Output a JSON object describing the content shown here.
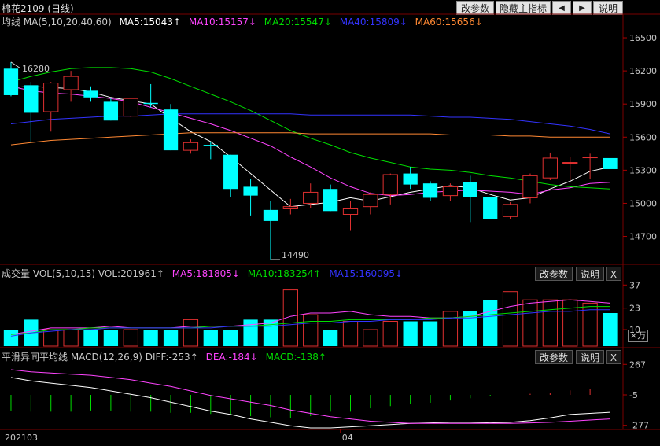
{
  "header": {
    "title": "棉花2109 (日线)",
    "buttons": {
      "params": "改参数",
      "hide_main": "隐藏主指标",
      "prev": "◀",
      "next": "▶",
      "help": "说明"
    }
  },
  "main_legend": {
    "label": "均线 MA(5,10,20,40,60)",
    "items": [
      {
        "text": "MA5:15043↑",
        "color": "#ffffff"
      },
      {
        "text": "MA10:15157↓",
        "color": "#ff44ff"
      },
      {
        "text": "MA20:15547↓",
        "color": "#00dd00"
      },
      {
        "text": "MA40:15809↓",
        "color": "#3333ff"
      },
      {
        "text": "MA60:15656↓",
        "color": "#ff8833"
      }
    ]
  },
  "vol_legend": {
    "label": "成交量 VOL(5,10,15) VOL:201961↑",
    "items": [
      {
        "text": "MA5:181805↓",
        "color": "#ff44ff"
      },
      {
        "text": "MA10:183254↑",
        "color": "#00dd00"
      },
      {
        "text": "MA15:160095↓",
        "color": "#3333ff"
      }
    ],
    "buttons": {
      "params": "改参数",
      "help": "说明",
      "close": "X"
    },
    "unit": "×万"
  },
  "macd_legend": {
    "label": "平滑异同平均线 MACD(12,26,9) DIFF:-253↑",
    "items": [
      {
        "text": "DEA:-184↓",
        "color": "#ff44ff"
      },
      {
        "text": "MACD:-138↑",
        "color": "#00dd00"
      }
    ],
    "buttons": {
      "params": "改参数",
      "help": "说明",
      "close": "X"
    }
  },
  "x_labels": [
    "202103",
    "04"
  ],
  "annotations": {
    "high": "16280",
    "low": "14490"
  },
  "chart_data": {
    "type": "candlestick",
    "price_ticks": [
      16500,
      16200,
      15900,
      15600,
      15300,
      15000,
      14700
    ],
    "price_range": [
      14490,
      16600
    ],
    "vol_ticks": [
      37,
      23,
      10
    ],
    "vol_range": [
      0,
      40
    ],
    "macd_ticks": [
      267,
      -5,
      -277
    ],
    "macd_range": [
      -300,
      290
    ],
    "candles": [
      {
        "o": 16220,
        "h": 16280,
        "l": 15970,
        "c": 15980
      },
      {
        "o": 16070,
        "h": 16100,
        "l": 15550,
        "c": 15820
      },
      {
        "o": 15830,
        "h": 16100,
        "l": 15650,
        "c": 16090
      },
      {
        "o": 16030,
        "h": 16200,
        "l": 15920,
        "c": 16150
      },
      {
        "o": 16020,
        "h": 16060,
        "l": 15920,
        "c": 15960
      },
      {
        "o": 15920,
        "h": 15950,
        "l": 15750,
        "c": 15750
      },
      {
        "o": 15790,
        "h": 15950,
        "l": 15780,
        "c": 15950
      },
      {
        "o": 15910,
        "h": 16080,
        "l": 15870,
        "c": 15900
      },
      {
        "o": 15850,
        "h": 15900,
        "l": 15480,
        "c": 15480
      },
      {
        "o": 15480,
        "h": 15580,
        "l": 15450,
        "c": 15550
      },
      {
        "o": 15530,
        "h": 15560,
        "l": 15400,
        "c": 15520
      },
      {
        "o": 15440,
        "h": 15440,
        "l": 15060,
        "c": 15130
      },
      {
        "o": 15150,
        "h": 15220,
        "l": 14890,
        "c": 15070
      },
      {
        "o": 14940,
        "h": 15020,
        "l": 14490,
        "c": 14840
      },
      {
        "o": 14950,
        "h": 15040,
        "l": 14900,
        "c": 14970
      },
      {
        "o": 15000,
        "h": 15180,
        "l": 14960,
        "c": 15100
      },
      {
        "o": 15130,
        "h": 15170,
        "l": 14930,
        "c": 14930
      },
      {
        "o": 14900,
        "h": 15020,
        "l": 14750,
        "c": 14950
      },
      {
        "o": 14970,
        "h": 15100,
        "l": 14900,
        "c": 15080
      },
      {
        "o": 15080,
        "h": 15270,
        "l": 14990,
        "c": 15260
      },
      {
        "o": 15270,
        "h": 15330,
        "l": 15130,
        "c": 15170
      },
      {
        "o": 15180,
        "h": 15200,
        "l": 15020,
        "c": 15050
      },
      {
        "o": 15070,
        "h": 15180,
        "l": 15020,
        "c": 15150
      },
      {
        "o": 15190,
        "h": 15250,
        "l": 14830,
        "c": 15060
      },
      {
        "o": 15060,
        "h": 15060,
        "l": 14860,
        "c": 14860
      },
      {
        "o": 14880,
        "h": 15010,
        "l": 14860,
        "c": 14990
      },
      {
        "o": 15050,
        "h": 15270,
        "l": 15000,
        "c": 15250
      },
      {
        "o": 15230,
        "h": 15460,
        "l": 15210,
        "c": 15410
      },
      {
        "o": 15370,
        "h": 15420,
        "l": 15210,
        "c": 15370
      },
      {
        "o": 15420,
        "h": 15450,
        "l": 15220,
        "c": 15420
      },
      {
        "o": 15410,
        "h": 15430,
        "l": 15250,
        "c": 15310
      }
    ],
    "ma_series": [
      {
        "values": [
          16050,
          16060,
          16050,
          16040,
          16010,
          15960,
          15930,
          15900,
          15770,
          15650,
          15560,
          15420,
          15270,
          15120,
          14970,
          14990,
          15010,
          15050,
          15020,
          15060,
          15100,
          15130,
          15160,
          15140,
          15080,
          15030,
          15050,
          15130,
          15200,
          15290,
          15330
        ],
        "color": "#ffffff"
      },
      {
        "values": [
          16060,
          16020,
          16000,
          15990,
          15970,
          15950,
          15920,
          15870,
          15820,
          15770,
          15720,
          15660,
          15590,
          15520,
          15420,
          15330,
          15230,
          15150,
          15090,
          15070,
          15080,
          15100,
          15110,
          15120,
          15110,
          15100,
          15080,
          15120,
          15140,
          15180,
          15190
        ],
        "color": "#ff44ff"
      },
      {
        "values": [
          16100,
          16150,
          16190,
          16220,
          16230,
          16230,
          16220,
          16190,
          16130,
          16060,
          15990,
          15920,
          15840,
          15750,
          15660,
          15590,
          15530,
          15460,
          15410,
          15370,
          15330,
          15310,
          15300,
          15280,
          15250,
          15230,
          15200,
          15170,
          15150,
          15140,
          15130
        ],
        "color": "#00dd00"
      },
      {
        "values": [
          15720,
          15740,
          15760,
          15770,
          15780,
          15790,
          15790,
          15800,
          15810,
          15810,
          15810,
          15810,
          15810,
          15810,
          15810,
          15800,
          15800,
          15800,
          15800,
          15800,
          15800,
          15790,
          15780,
          15780,
          15770,
          15760,
          15740,
          15720,
          15700,
          15670,
          15630
        ],
        "color": "#3333ff"
      },
      {
        "values": [
          15530,
          15550,
          15570,
          15580,
          15590,
          15600,
          15610,
          15620,
          15630,
          15640,
          15640,
          15640,
          15640,
          15640,
          15640,
          15630,
          15630,
          15630,
          15630,
          15630,
          15630,
          15630,
          15620,
          15620,
          15620,
          15610,
          15610,
          15600,
          15600,
          15600,
          15600
        ],
        "color": "#ff8833"
      }
    ],
    "volumes": [
      10,
      16,
      10,
      10,
      10,
      10,
      10,
      10,
      10,
      16,
      10,
      10,
      16,
      16,
      34,
      19,
      10,
      15,
      10,
      15,
      15,
      15,
      21,
      21,
      28,
      33,
      28,
      28,
      28,
      26,
      20
    ],
    "vol_ma": [
      {
        "values": [
          7,
          9,
          11,
          11,
          11,
          12,
          11,
          11,
          11,
          12,
          12,
          12,
          13,
          14,
          18,
          20,
          20,
          21,
          19,
          18,
          18,
          17,
          17,
          18,
          21,
          24,
          26,
          27,
          28,
          27,
          26
        ],
        "color": "#ff44ff"
      },
      {
        "values": [
          7,
          8,
          10,
          10,
          11,
          11,
          11,
          11,
          11,
          11,
          12,
          12,
          12,
          13,
          14,
          15,
          15,
          16,
          16,
          16,
          16,
          17,
          17,
          18,
          19,
          20,
          21,
          22,
          23,
          24,
          24
        ],
        "color": "#00dd00"
      },
      {
        "values": [
          6,
          8,
          9,
          10,
          10,
          11,
          11,
          11,
          11,
          11,
          11,
          12,
          12,
          12,
          13,
          14,
          14,
          15,
          15,
          16,
          16,
          16,
          17,
          17,
          18,
          19,
          20,
          21,
          21,
          22,
          22
        ],
        "color": "#3333ff"
      }
    ],
    "macd_bars": [
      -140,
      -150,
      -150,
      -150,
      -140,
      -140,
      -150,
      -150,
      -160,
      -160,
      -170,
      -180,
      -190,
      -200,
      -210,
      -190,
      -150,
      -150,
      -120,
      -100,
      -80,
      -70,
      -50,
      -30,
      -10,
      0,
      10,
      20,
      40,
      50,
      60
    ],
    "diff": [
      150,
      120,
      100,
      80,
      60,
      30,
      0,
      -30,
      -70,
      -110,
      -150,
      -180,
      -220,
      -250,
      -280,
      -300,
      -300,
      -290,
      -280,
      -270,
      -260,
      -255,
      -250,
      -250,
      -255,
      -250,
      -235,
      -210,
      -180,
      -170,
      -160
    ],
    "dea": [
      220,
      200,
      190,
      180,
      170,
      150,
      130,
      100,
      70,
      30,
      -10,
      -40,
      -70,
      -100,
      -140,
      -170,
      -200,
      -220,
      -240,
      -250,
      -260,
      -260,
      -260,
      -260,
      -260,
      -260,
      -255,
      -250,
      -240,
      -230,
      -220
    ]
  }
}
